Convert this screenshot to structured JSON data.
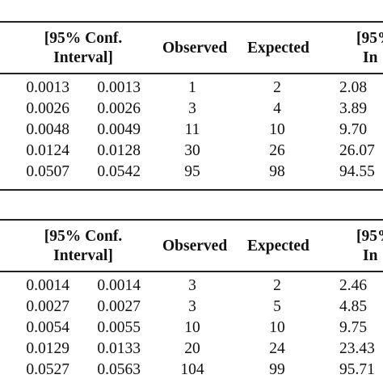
{
  "tables": [
    {
      "header": {
        "ci_line1": "[95% Conf.",
        "ci_line2": "Interval]",
        "observed": "Observed",
        "expected": "Expected",
        "ci2_line1": "[95%",
        "ci2_line2": "In"
      },
      "rows": [
        [
          "0.0013",
          "0.0013",
          "1",
          "2",
          "2.08"
        ],
        [
          "0.0026",
          "0.0026",
          "3",
          "4",
          "3.89"
        ],
        [
          "0.0048",
          "0.0049",
          "11",
          "10",
          "9.70"
        ],
        [
          "0.0124",
          "0.0128",
          "30",
          "26",
          "26.07"
        ],
        [
          "0.0507",
          "0.0542",
          "95",
          "98",
          "94.55"
        ]
      ]
    },
    {
      "header": {
        "ci_line1": "[95% Conf.",
        "ci_line2": "Interval]",
        "observed": "Observed",
        "expected": "Expected",
        "ci2_line1": "[95%",
        "ci2_line2": "In"
      },
      "rows": [
        [
          "0.0014",
          "0.0014",
          "3",
          "2",
          "2.46"
        ],
        [
          "0.0027",
          "0.0027",
          "3",
          "5",
          "4.85"
        ],
        [
          "0.0054",
          "0.0055",
          "10",
          "10",
          "9.75"
        ],
        [
          "0.0129",
          "0.0133",
          "20",
          "24",
          "23.43"
        ],
        [
          "0.0527",
          "0.0563",
          "104",
          "99",
          "95.71"
        ]
      ]
    }
  ]
}
